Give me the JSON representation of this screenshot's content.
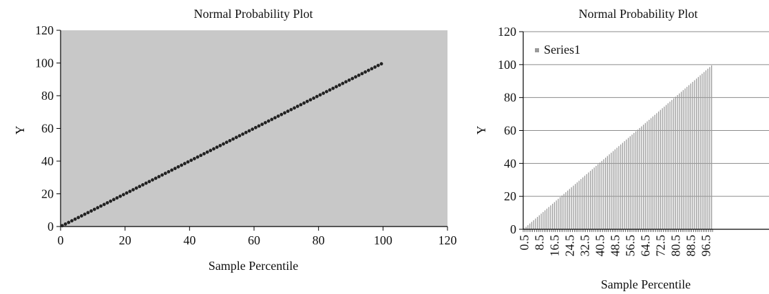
{
  "chart_data": [
    {
      "type": "scatter",
      "title": "Normal Probability Plot",
      "xlabel": "Sample Percentile",
      "ylabel": "Y",
      "xlim": [
        0,
        120
      ],
      "ylim": [
        0,
        120
      ],
      "xticks": [
        "0",
        "20",
        "40",
        "60",
        "80",
        "100",
        "120"
      ],
      "yticks": [
        "0",
        "20",
        "40",
        "60",
        "80",
        "100",
        "120"
      ],
      "grid": false,
      "plot_background": "#c8c8c8",
      "marker_color": "#222222",
      "series": [
        {
          "x_start": 0.5,
          "x_step": 1,
          "count": 100,
          "y_start": 0.5,
          "y_step": 1
        }
      ]
    },
    {
      "type": "bar",
      "title": "Normal Probability Plot",
      "xlabel": "Sample Percentile",
      "ylabel": "Y",
      "ylim": [
        0,
        120
      ],
      "yticks": [
        "0",
        "20",
        "40",
        "60",
        "80",
        "100",
        "120"
      ],
      "xtick_labels": [
        "0.5",
        "8.5",
        "16.5",
        "24.5",
        "32.5",
        "40.5",
        "48.5",
        "56.5",
        "64.5",
        "72.5",
        "80.5",
        "88.5",
        "96.5"
      ],
      "grid": true,
      "legend": "top-left",
      "bar_color": "#9a9a9a",
      "series": [
        {
          "name": "Series1",
          "category_start": 0.5,
          "category_step": 1,
          "count": 100,
          "value_start": 0.5,
          "value_step": 1
        }
      ]
    }
  ]
}
